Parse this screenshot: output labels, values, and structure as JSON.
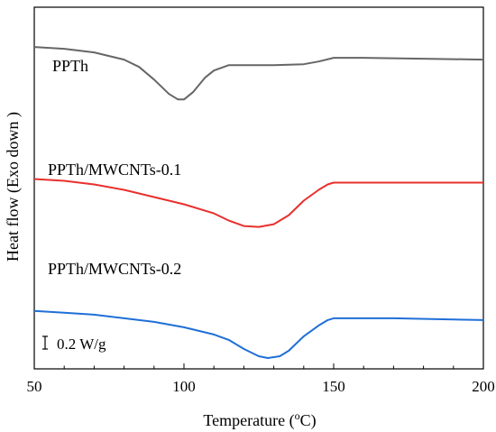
{
  "chart_data": {
    "type": "line",
    "xlabel": "Temperature (",
    "xlabel_sup": "o",
    "xlabel_suffix": "C)",
    "ylabel": "Heat flow (Exo down )",
    "xlim": [
      50,
      200
    ],
    "xticks": [
      "50",
      "100",
      "150",
      "200"
    ],
    "xtick_values": [
      50,
      100,
      150,
      200
    ],
    "scale_bar_label": "0.2 W/g",
    "scale_bar_value": 0.2,
    "series": [
      {
        "name": "PPTh",
        "color": "#666666",
        "offset": 1.8,
        "points": [
          [
            50,
            -0.02
          ],
          [
            60,
            -0.03
          ],
          [
            70,
            -0.05
          ],
          [
            80,
            -0.09
          ],
          [
            85,
            -0.13
          ],
          [
            90,
            -0.2
          ],
          [
            95,
            -0.28
          ],
          [
            98,
            -0.31
          ],
          [
            100,
            -0.31
          ],
          [
            103,
            -0.27
          ],
          [
            107,
            -0.19
          ],
          [
            110,
            -0.15
          ],
          [
            115,
            -0.12
          ],
          [
            120,
            -0.12
          ],
          [
            130,
            -0.12
          ],
          [
            140,
            -0.115
          ],
          [
            145,
            -0.1
          ],
          [
            150,
            -0.08
          ],
          [
            160,
            -0.08
          ],
          [
            180,
            -0.085
          ],
          [
            200,
            -0.09
          ]
        ]
      },
      {
        "name": "PPTh/MWCNTs-0.1",
        "color": "#e8302d",
        "offset": 1.05,
        "points": [
          [
            50,
            0.0
          ],
          [
            60,
            -0.01
          ],
          [
            70,
            -0.03
          ],
          [
            80,
            -0.06
          ],
          [
            90,
            -0.1
          ],
          [
            100,
            -0.14
          ],
          [
            110,
            -0.19
          ],
          [
            115,
            -0.23
          ],
          [
            120,
            -0.26
          ],
          [
            125,
            -0.265
          ],
          [
            130,
            -0.25
          ],
          [
            135,
            -0.2
          ],
          [
            140,
            -0.12
          ],
          [
            145,
            -0.06
          ],
          [
            148,
            -0.03
          ],
          [
            150,
            -0.02
          ],
          [
            170,
            -0.02
          ],
          [
            200,
            -0.02
          ]
        ]
      },
      {
        "name": "PPTh/MWCNTs-0.2",
        "color": "#1f6fd6",
        "offset": 0.32,
        "points": [
          [
            50,
            0.0
          ],
          [
            60,
            -0.01
          ],
          [
            70,
            -0.02
          ],
          [
            80,
            -0.04
          ],
          [
            90,
            -0.06
          ],
          [
            100,
            -0.09
          ],
          [
            110,
            -0.13
          ],
          [
            115,
            -0.16
          ],
          [
            120,
            -0.21
          ],
          [
            125,
            -0.25
          ],
          [
            128,
            -0.26
          ],
          [
            132,
            -0.25
          ],
          [
            135,
            -0.22
          ],
          [
            140,
            -0.14
          ],
          [
            145,
            -0.08
          ],
          [
            148,
            -0.05
          ],
          [
            150,
            -0.04
          ],
          [
            170,
            -0.04
          ],
          [
            200,
            -0.05
          ]
        ]
      }
    ]
  }
}
